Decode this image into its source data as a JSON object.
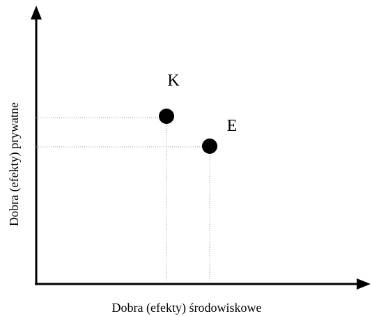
{
  "x_axis_label": "Dobra (efekty) środowiskowe",
  "y_axis_label": "Dobra (efekty) prywatne",
  "points": [
    {
      "label": "K"
    },
    {
      "label": "E"
    }
  ]
}
